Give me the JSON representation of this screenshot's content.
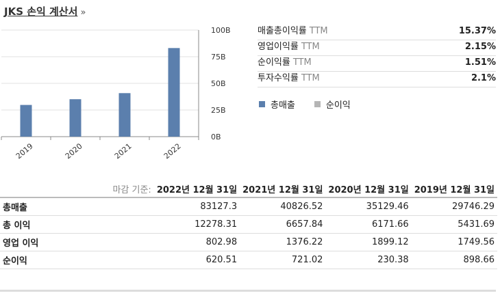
{
  "header": {
    "title": "JKS 손익 계산서",
    "arrow": "»"
  },
  "colors": {
    "revenue": "#5b7fad",
    "net_income": "#b5b5b5"
  },
  "chart_data": {
    "type": "bar",
    "categories": [
      "2019",
      "2020",
      "2021",
      "2022"
    ],
    "series": [
      {
        "name": "총매출",
        "values": [
          29.75,
          35.13,
          40.83,
          83.13
        ]
      }
    ],
    "ylim": [
      0,
      100
    ],
    "yticks": [
      "100B",
      "75B",
      "50B",
      "25B",
      "0B"
    ],
    "ytick_values": [
      100,
      75,
      50,
      25,
      0
    ],
    "legend": [
      {
        "name": "총매출",
        "color": "#5b7fad"
      },
      {
        "name": "순이익",
        "color": "#b5b5b5"
      }
    ],
    "legend_position": "right"
  },
  "metrics": [
    {
      "label": "매출총이익률",
      "ttm": "TTM",
      "value": "15.37%"
    },
    {
      "label": "영업이익률",
      "ttm": "TTM",
      "value": "2.15%"
    },
    {
      "label": "순이익률",
      "ttm": "TTM",
      "value": "1.51%"
    },
    {
      "label": "투자수익률",
      "ttm": "TTM",
      "value": "2.1%"
    }
  ],
  "table": {
    "caption": "마감 기준:",
    "columns": [
      "2022년 12월 31일",
      "2021년 12월 31일",
      "2020년 12월 31일",
      "2019년 12월 31일"
    ],
    "rows": [
      {
        "label": "총매출",
        "values": [
          "83127.3",
          "40826.52",
          "35129.46",
          "29746.29"
        ]
      },
      {
        "label": "총 이익",
        "values": [
          "12278.31",
          "6657.84",
          "6171.66",
          "5431.69"
        ]
      },
      {
        "label": "영업 이익",
        "values": [
          "802.98",
          "1376.22",
          "1899.12",
          "1749.56"
        ]
      },
      {
        "label": "순이익",
        "values": [
          "620.51",
          "721.02",
          "230.38",
          "898.66"
        ]
      }
    ]
  }
}
